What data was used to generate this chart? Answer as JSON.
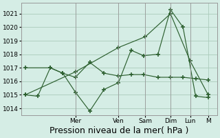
{
  "background_color": "#d5ede5",
  "grid_color": "#aacbbb",
  "line_color": "#2d6030",
  "ylim": [
    1013.5,
    1021.8
  ],
  "yticks": [
    1014,
    1015,
    1016,
    1017,
    1018,
    1019,
    1020,
    1021
  ],
  "xlabel": "Pression niveau de la mer( hPa )",
  "xlabel_fontsize": 9,
  "day_labels": [
    "Mer",
    "Ven",
    "Sam",
    "Dim",
    "Lun",
    "M"
  ],
  "day_positions_norm": [
    0.28,
    0.52,
    0.67,
    0.81,
    0.92,
    1.02
  ],
  "line_low_x": [
    0.0,
    0.07,
    0.14,
    0.21,
    0.28,
    0.36,
    0.44,
    0.52,
    0.59,
    0.66,
    0.74,
    0.81,
    0.88,
    0.95,
    1.02
  ],
  "line_low_y": [
    1015.0,
    1014.9,
    1017.0,
    1016.6,
    1015.2,
    1013.8,
    1015.4,
    1015.9,
    1018.3,
    1017.9,
    1018.0,
    1021.3,
    1020.0,
    1014.9,
    1014.8
  ],
  "line_mid_x": [
    0.0,
    0.14,
    0.21,
    0.28,
    0.36,
    0.44,
    0.52,
    0.59,
    0.66,
    0.74,
    0.81,
    0.88,
    0.95,
    1.02
  ],
  "line_mid_y": [
    1017.0,
    1017.0,
    1016.6,
    1016.3,
    1017.4,
    1016.6,
    1016.4,
    1016.5,
    1016.5,
    1016.3,
    1016.3,
    1016.3,
    1016.2,
    1016.1
  ],
  "line_high_x": [
    0.0,
    0.28,
    0.52,
    0.67,
    0.81,
    0.92,
    1.02
  ],
  "line_high_y": [
    1015.0,
    1016.7,
    1018.5,
    1019.3,
    1021.0,
    1017.5,
    1015.0
  ],
  "figsize": [
    3.2,
    2.0
  ],
  "dpi": 100
}
